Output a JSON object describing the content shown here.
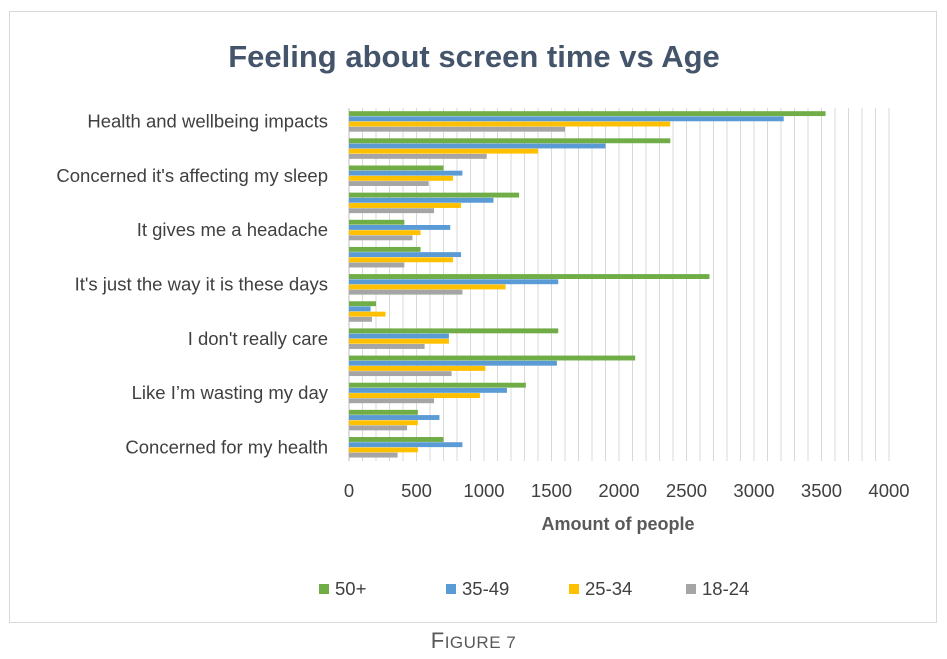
{
  "chart_data": {
    "type": "bar",
    "orientation": "horizontal",
    "title": "Feeling about screen time vs Age",
    "xlabel": "Amount of people",
    "ylabel": "",
    "xlim": [
      0,
      4000
    ],
    "x_ticks": [
      "0",
      "500",
      "1000",
      "1500",
      "2000",
      "2500",
      "3000",
      "3500",
      "4000"
    ],
    "grid": true,
    "legend_position": "bottom",
    "categories": [
      "Health and wellbeing impacts",
      "",
      "Concerned it's affecting my sleep",
      "",
      "It gives me a headache",
      "",
      "It's just the way it is these days",
      "",
      "I don't really care",
      "",
      "Like I’m wasting my day",
      "",
      "Concerned for my health"
    ],
    "series": [
      {
        "name": "50+",
        "color": "#70ad47",
        "values": [
          3530,
          2380,
          700,
          1260,
          410,
          530,
          2670,
          200,
          1550,
          2120,
          1310,
          510,
          700
        ]
      },
      {
        "name": "35-49",
        "color": "#5b9bd5",
        "values": [
          3220,
          1900,
          840,
          1070,
          750,
          830,
          1550,
          160,
          740,
          1540,
          1170,
          670,
          840
        ]
      },
      {
        "name": "25-34",
        "color": "#ffc000",
        "values": [
          2380,
          1400,
          770,
          830,
          530,
          770,
          1160,
          270,
          740,
          1010,
          970,
          510,
          510
        ]
      },
      {
        "name": "18-24",
        "color": "#a5a5a5",
        "values": [
          1600,
          1020,
          590,
          630,
          470,
          410,
          840,
          170,
          560,
          760,
          630,
          430,
          360
        ]
      }
    ]
  },
  "caption": {
    "first": "F",
    "rest": "IGURE 7"
  }
}
